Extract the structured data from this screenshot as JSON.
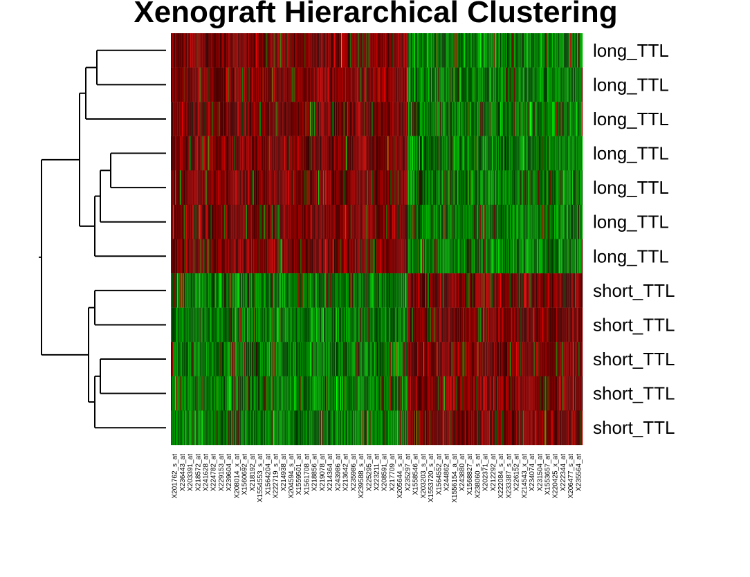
{
  "chart_data": {
    "type": "heatmap",
    "title": "Xenograft Hierarchical Clustering",
    "row_labels": [
      "long_TTL",
      "long_TTL",
      "long_TTL",
      "long_TTL",
      "long_TTL",
      "long_TTL",
      "long_TTL",
      "short_TTL",
      "short_TTL",
      "short_TTL",
      "short_TTL",
      "short_TTL"
    ],
    "col_labels": [
      "X201762_s_at",
      "X236443_at",
      "X203391_at",
      "X218572_at",
      "X241628_at",
      "X224782_at",
      "X229153_at",
      "X239604_at",
      "X208014_x_at",
      "X1560692_at",
      "X218192_at",
      "X1554553_s_at",
      "X1564204_at",
      "X222719_s_at",
      "X214938_at",
      "X204594_s_at",
      "X1559501_at",
      "X1561708_at",
      "X218856_at",
      "X219078_at",
      "X214364_at",
      "X243986_at",
      "X213642_at",
      "X235986_at",
      "X239588_s_at",
      "X225295_at",
      "X223211_at",
      "X208591_at",
      "X217709_at",
      "X205644_s_at",
      "X235297_at",
      "X1558546_at",
      "X203203_s_at",
      "X1553720_s_at",
      "X1564552_at",
      "X244862_at",
      "X1556154_a_at",
      "X243880_at",
      "X1568827_at",
      "X238060_s_at",
      "X202371_at",
      "X212292_at",
      "X222084_s_at",
      "X233387_s_at",
      "X226152_at",
      "X214543_x_at",
      "X234074_at",
      "X231504_at",
      "X1553657_at",
      "X220425_x_at",
      "X222344_at",
      "X206477_s_at",
      "X235564_at"
    ],
    "pattern": {
      "long_TTL": {
        "left_block": "red",
        "right_block": "green"
      },
      "short_TTL": {
        "left_block": "green",
        "right_block": "red"
      }
    },
    "colors": {
      "high": "#ff2020",
      "mid": "#000000",
      "low": "#20e020"
    },
    "dendrogram": {
      "side": "left",
      "merges": [
        [
          0,
          1
        ],
        [
          3,
          4
        ],
        [
          -2,
          5
        ],
        [
          -3,
          6
        ],
        [
          -1,
          2
        ],
        [
          -5,
          -4
        ],
        [
          7,
          8
        ],
        [
          9,
          10
        ],
        [
          -8,
          11
        ],
        [
          -7,
          -9
        ],
        [
          -6,
          -10
        ]
      ]
    }
  }
}
